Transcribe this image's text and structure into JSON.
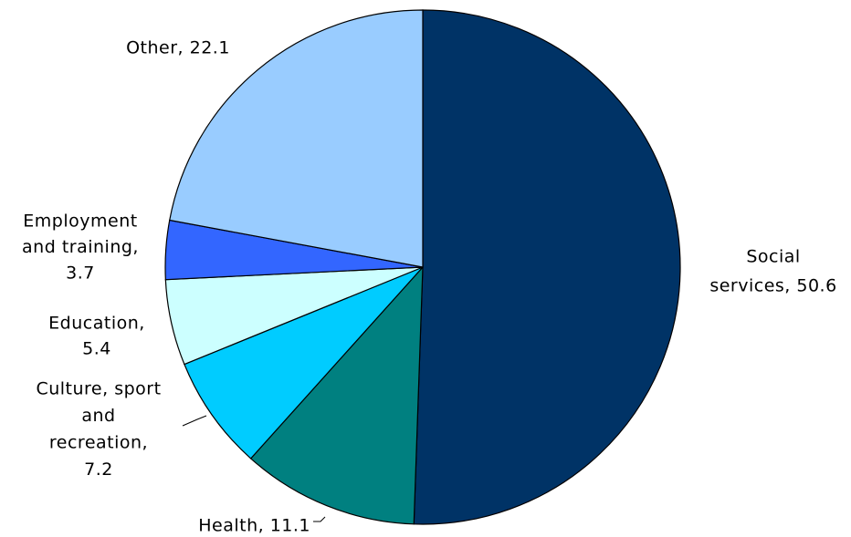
{
  "chart_data": {
    "type": "pie",
    "values": [
      50.6,
      11.1,
      7.2,
      5.4,
      3.7,
      22.1
    ],
    "value_labels": [
      [
        "Social",
        "services, 50.6"
      ],
      [
        "Health, 11.1"
      ],
      [
        "Culture, sport",
        "and",
        "recreation,",
        "7.2"
      ],
      [
        "Education,",
        "5.4"
      ],
      [
        "Employment",
        "and training,",
        "3.7"
      ],
      [
        "Other, 22.1"
      ]
    ],
    "colors": [
      "#003366",
      "#008080",
      "#00ccff",
      "#ccffff",
      "#3366ff",
      "#99ccff"
    ]
  }
}
